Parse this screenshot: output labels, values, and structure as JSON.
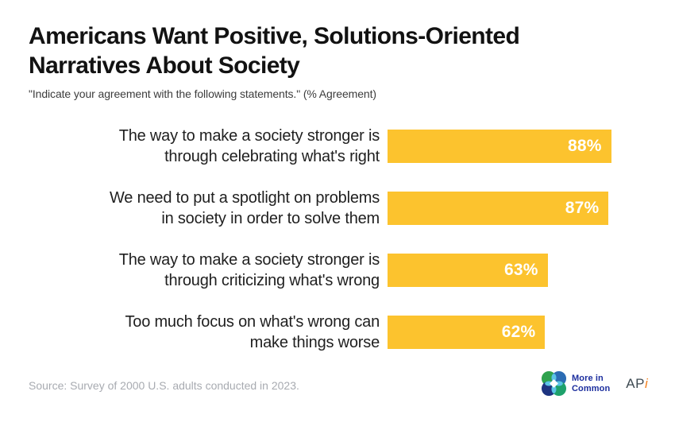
{
  "header": {
    "title_lines": [
      "Americans Want Positive, Solutions-Oriented",
      "Narratives About Society"
    ],
    "subtitle": "\"Indicate your agreement with the following statements.\" (% Agreement)"
  },
  "chart_data": {
    "type": "bar",
    "orientation": "horizontal",
    "title": "Americans Want Positive, Solutions-Oriented Narratives About Society",
    "subtitle": "\"Indicate your agreement with the following statements.\" (% Agreement)",
    "xlabel": "",
    "ylabel": "",
    "xlim": [
      0,
      100
    ],
    "grid": false,
    "legend": false,
    "bar_color": "#FCC32E",
    "value_label_color": "#FFFFFF",
    "value_suffix": "%",
    "categories": [
      "The way to make a society stronger is through celebrating what's right",
      "We need to put a spotlight on problems in society in order to solve them",
      "The way to make a society stronger is through criticizing what's wrong",
      "Too much focus on what's wrong can make things worse"
    ],
    "category_lines": [
      [
        "The way to make a society stronger is",
        "through celebrating what's right"
      ],
      [
        "We need to put a spotlight on problems",
        "in society in order to solve them"
      ],
      [
        "The way to make a society stronger is",
        "through criticizing what's wrong"
      ],
      [
        "Too much focus on what's wrong can",
        "make things worse"
      ]
    ],
    "values": [
      88,
      87,
      63,
      62
    ],
    "value_labels": [
      "88%",
      "87%",
      "63%",
      "62%"
    ]
  },
  "footer": {
    "source": "Source: Survey of 2000 U.S. adults conducted in 2023.",
    "more_in_common_logo": {
      "text_line1": "More in",
      "text_line2": "Common",
      "text_color": "#1C2E9E",
      "circle_top_left": "#2FA24D",
      "circle_top_right": "#2B6CB4",
      "circle_bottom_left": "#1E3480",
      "circle_bottom_right": "#1EA16B",
      "overlap_color": "#5BC4E6"
    },
    "api_logo": {
      "ap_text": "AP",
      "i_text": "i",
      "ap_color": "#3E4A52",
      "i_color": "#F58220"
    }
  },
  "colors": {
    "background": "#FFFFFF",
    "title": "#121212",
    "subtitle": "#3C3C3C",
    "label": "#1F1F1F",
    "bar": "#FCC32E",
    "source": "#A8ABB1"
  }
}
